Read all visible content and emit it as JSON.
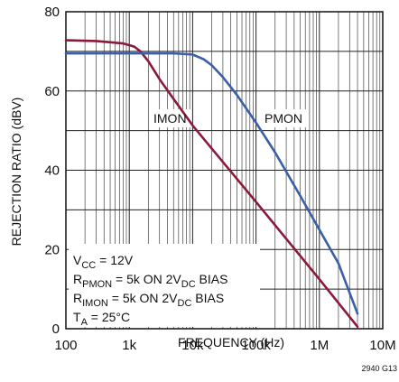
{
  "chart_data": {
    "type": "line",
    "xlabel": "FREQUENCY (Hz)",
    "ylabel": "REJECTION RATIO (dBV)",
    "x_scale": "log",
    "xlim": [
      100,
      10000000
    ],
    "ylim": [
      0,
      80
    ],
    "x_ticks": [
      "100",
      "1k",
      "10k",
      "100k",
      "1M",
      "10M"
    ],
    "y_ticks": [
      "0",
      "20",
      "40",
      "60",
      "80"
    ],
    "grid": true,
    "figure_id": "2940 G13",
    "conditions": [
      {
        "main": "V",
        "sub": "CC",
        "rest": " = 12V"
      },
      {
        "main": "R",
        "sub": "PMON",
        "rest": " = 5k ON 2V",
        "sub2": "DC",
        "rest2": " BIAS"
      },
      {
        "main": "R",
        "sub": "IMON",
        "rest": " = 5k ON 2V",
        "sub2": "DC",
        "rest2": " BIAS"
      },
      {
        "main": "T",
        "sub": "A",
        "rest": " = 25°C"
      }
    ],
    "series": [
      {
        "name": "IMON",
        "color": "#8b1a3a",
        "x": [
          100,
          300,
          800,
          1200,
          1500,
          2000,
          3000,
          5000,
          10000,
          100000,
          1000000,
          4000000
        ],
        "y": [
          72.8,
          72.6,
          72.0,
          71.2,
          70.0,
          67.5,
          63.0,
          58.0,
          51.3,
          32.0,
          12.5,
          0.5
        ]
      },
      {
        "name": "PMON",
        "color": "#3a5fa8",
        "x": [
          100,
          1000,
          5000,
          10000,
          15000,
          20000,
          30000,
          50000,
          100000,
          200000,
          500000,
          1000000,
          2000000,
          4000000
        ],
        "y": [
          69.5,
          69.5,
          69.5,
          69.2,
          68.0,
          66.5,
          63.5,
          59.0,
          52.0,
          44.5,
          33.5,
          25.0,
          16.5,
          3.8
        ]
      }
    ]
  }
}
